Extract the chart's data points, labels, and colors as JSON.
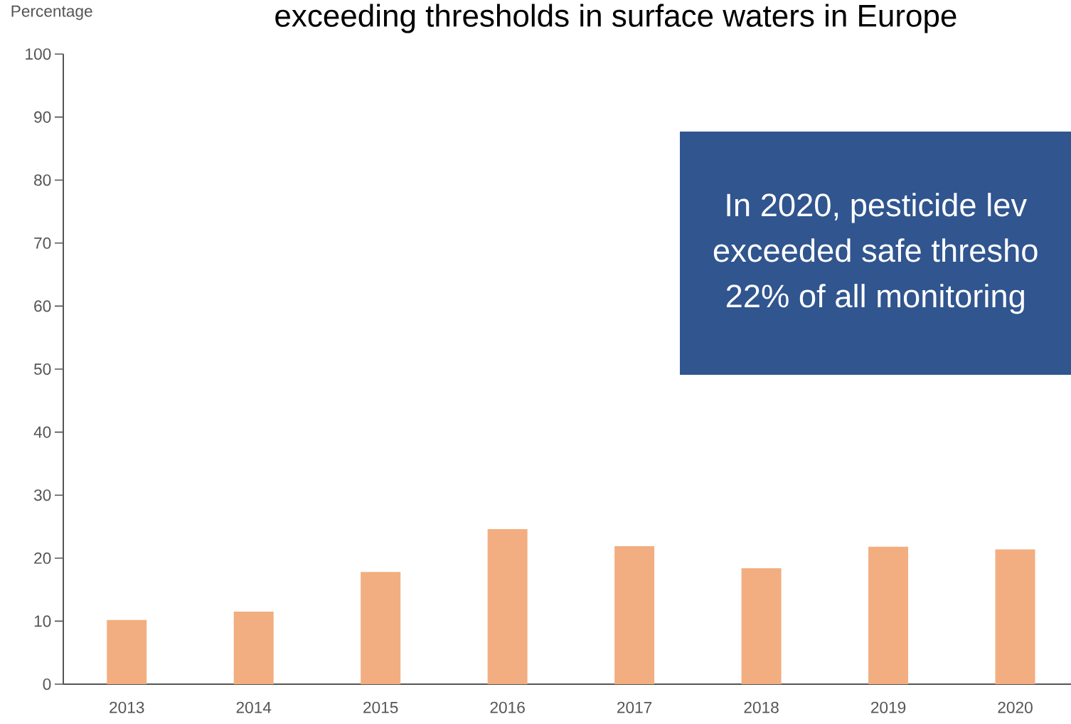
{
  "chart_data": {
    "type": "bar",
    "title": "exceeding thresholds in surface waters in Europe",
    "ylabel": "Percentage",
    "categories": [
      "2013",
      "2014",
      "2015",
      "2016",
      "2017",
      "2018",
      "2019",
      "2020"
    ],
    "values": [
      10.2,
      11.5,
      17.8,
      24.6,
      21.9,
      18.4,
      21.8,
      21.4
    ],
    "color": "#f2ae80",
    "ylim": [
      0,
      100
    ],
    "yticks": [
      0,
      10,
      20,
      30,
      40,
      50,
      60,
      70,
      80,
      90,
      100
    ],
    "annotations": [
      "In 2020, pesticide lev",
      "exceeded safe thresho",
      "22% of all monitoring"
    ]
  }
}
